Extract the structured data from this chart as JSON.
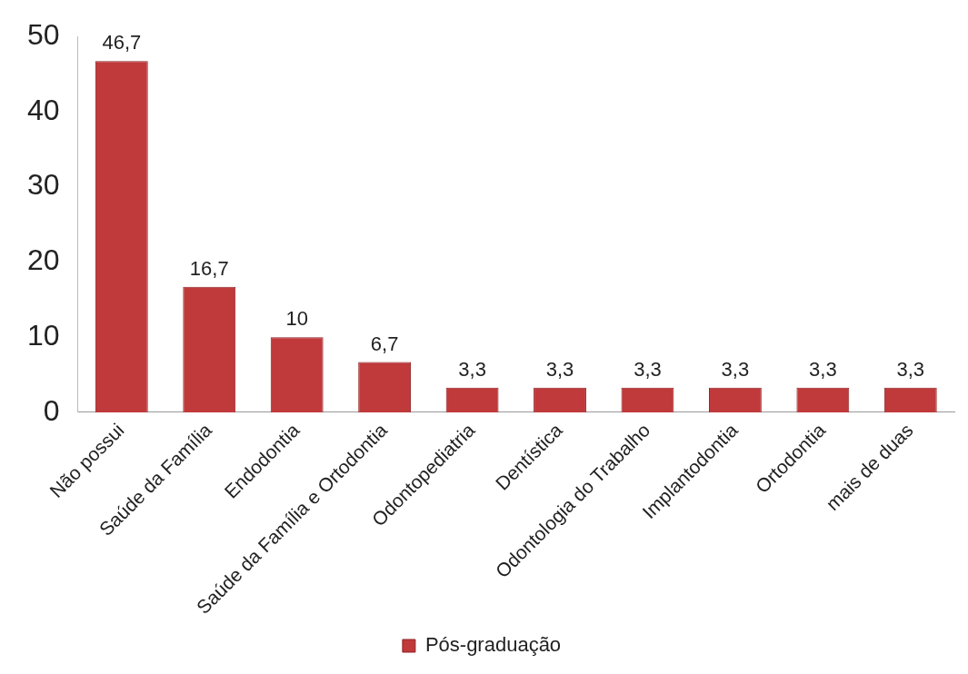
{
  "chart_data": {
    "type": "bar",
    "categories": [
      "Não possui",
      "Saúde da Família",
      "Endodontia",
      "Saúde da Família e Ortodontia",
      "Odontopediatria",
      "Dentística",
      "Odontologia do Trabalho",
      "Implantodontia",
      "Ortodontia",
      "mais de duas"
    ],
    "series": [
      {
        "name": "Pós-graduação",
        "color": "#c0393b",
        "values": [
          46.7,
          16.7,
          10,
          6.7,
          3.3,
          3.3,
          3.3,
          3.3,
          3.3,
          3.3
        ],
        "value_labels": [
          "46,7",
          "16,7",
          "10",
          "6,7",
          "3,3",
          "3,3",
          "3,3",
          "3,3",
          "3,3",
          "3,3"
        ]
      }
    ],
    "ylim": [
      0,
      50
    ],
    "yticks": [
      0,
      10,
      20,
      30,
      40,
      50
    ],
    "grid": false,
    "legend": "bottom"
  }
}
